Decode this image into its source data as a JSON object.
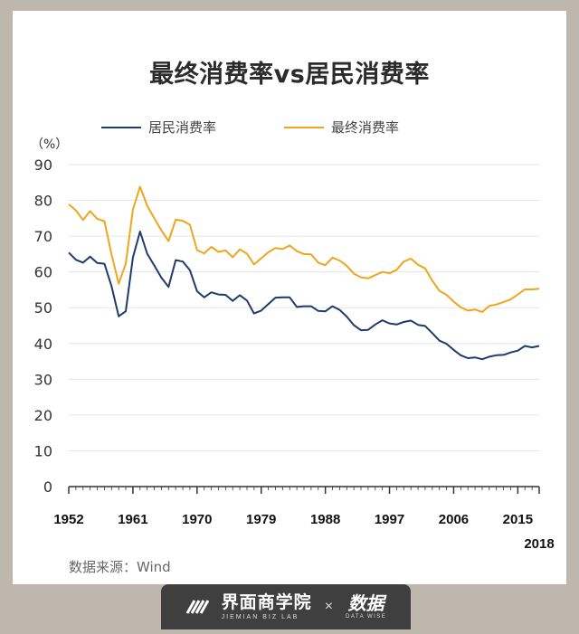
{
  "footer": {
    "brand1_name": "界面商学院",
    "brand1_sub": "JIEMIAN BIZ LAB",
    "separator": "×",
    "brand2_name": "数据",
    "brand2_sub": "DATA WISE"
  },
  "source_text": "数据来源：Wind",
  "colors": {
    "resident": "#1f3a6d",
    "final": "#f0a51e",
    "grid": "#e6e6e6",
    "axis": "#333333",
    "background": "#bdb7ad"
  },
  "chart_data": {
    "type": "line",
    "title": "最终消费率vs居民消费率",
    "ylabel": "（%）",
    "xlabel": "",
    "ylim": [
      0,
      90
    ],
    "yticks": [
      0,
      10,
      20,
      30,
      40,
      50,
      60,
      70,
      80,
      90
    ],
    "xticks": [
      "1952",
      "1961",
      "1970",
      "1979",
      "1988",
      "1997",
      "2006",
      "2015",
      "2018"
    ],
    "grid": true,
    "legend_position": "top-left",
    "x": [
      1952,
      1953,
      1954,
      1955,
      1956,
      1957,
      1958,
      1959,
      1960,
      1961,
      1962,
      1963,
      1964,
      1965,
      1966,
      1967,
      1968,
      1969,
      1970,
      1971,
      1972,
      1973,
      1974,
      1975,
      1976,
      1977,
      1978,
      1979,
      1980,
      1981,
      1982,
      1983,
      1984,
      1985,
      1986,
      1987,
      1988,
      1989,
      1990,
      1991,
      1992,
      1993,
      1994,
      1995,
      1996,
      1997,
      1998,
      1999,
      2000,
      2001,
      2002,
      2003,
      2004,
      2005,
      2006,
      2007,
      2008,
      2009,
      2010,
      2011,
      2012,
      2013,
      2014,
      2015,
      2016,
      2017,
      2018
    ],
    "series": [
      {
        "name": "居民消费率",
        "color": "#1f3a6d",
        "values": [
          65.4,
          63.4,
          62.6,
          64.3,
          62.5,
          62.3,
          56.0,
          47.6,
          49.0,
          64.0,
          71.3,
          65.1,
          61.8,
          58.4,
          55.8,
          63.3,
          62.9,
          60.5,
          54.6,
          52.9,
          54.3,
          53.7,
          53.6,
          51.9,
          53.5,
          52.0,
          48.4,
          49.2,
          51.0,
          52.8,
          52.9,
          52.9,
          50.2,
          50.4,
          50.4,
          49.1,
          49.0,
          50.4,
          49.4,
          47.5,
          45.1,
          43.7,
          43.8,
          45.3,
          46.5,
          45.6,
          45.3,
          46.0,
          46.4,
          45.2,
          44.9,
          42.9,
          40.8,
          39.9,
          38.2,
          36.7,
          35.9,
          36.1,
          35.6,
          36.3,
          36.7,
          36.8,
          37.5,
          38.0,
          39.3,
          38.9,
          39.3
        ]
      },
      {
        "name": "最终消费率",
        "color": "#f0a51e",
        "values": [
          78.9,
          77.2,
          74.5,
          77.0,
          74.8,
          74.2,
          64.9,
          56.7,
          62.3,
          77.4,
          83.8,
          78.5,
          75.0,
          71.6,
          68.6,
          74.6,
          74.3,
          73.2,
          66.1,
          65.2,
          67.0,
          65.6,
          66.0,
          64.1,
          66.3,
          65.1,
          62.1,
          63.8,
          65.5,
          66.7,
          66.4,
          67.4,
          65.8,
          65.0,
          64.9,
          62.6,
          61.9,
          64.0,
          63.2,
          61.7,
          59.5,
          58.5,
          58.2,
          59.1,
          60.0,
          59.6,
          60.6,
          62.9,
          63.7,
          62.0,
          61.0,
          57.6,
          54.7,
          53.6,
          51.7,
          50.1,
          49.2,
          49.5,
          48.8,
          50.5,
          50.9,
          51.6,
          52.3,
          53.7,
          55.1,
          55.1,
          55.3
        ]
      }
    ]
  }
}
